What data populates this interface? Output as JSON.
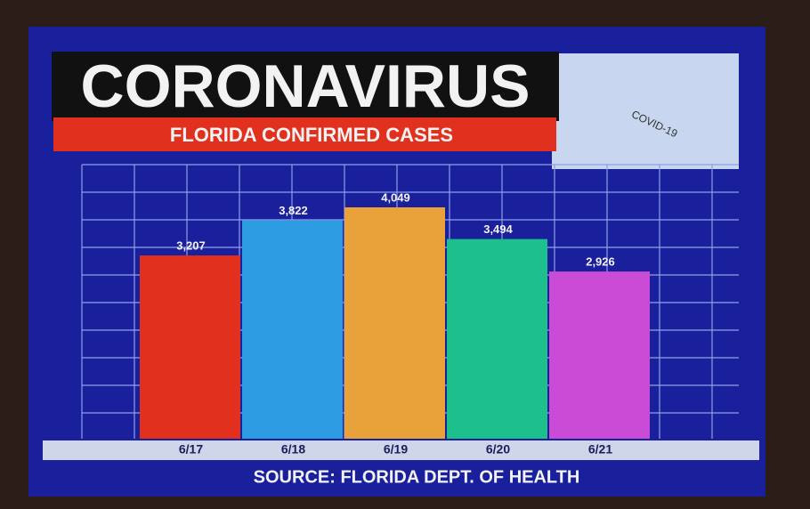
{
  "chart_data": {
    "type": "bar",
    "title": "CORONAVIRUS",
    "subtitle": "FLORIDA CONFIRMED CASES",
    "categories": [
      "6/17",
      "6/18",
      "6/19",
      "6/20",
      "6/21"
    ],
    "values": [
      3207,
      3822,
      4049,
      3494,
      2926
    ],
    "value_labels": [
      "3,207",
      "3,822",
      "4,049",
      "3,494",
      "2,926"
    ],
    "colors": [
      "#e2301f",
      "#2e9ce2",
      "#e9a23a",
      "#1dbf8c",
      "#c94bd6"
    ],
    "grid": true,
    "source": "SOURCE: FLORIDA DEPT. OF HEALTH",
    "image_text": "COVID-19"
  }
}
